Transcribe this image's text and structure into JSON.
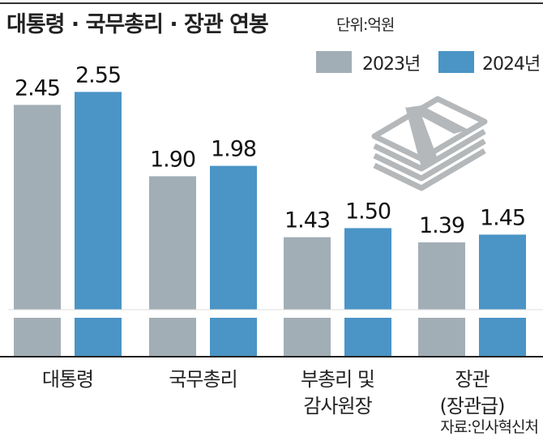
{
  "chart_data": {
    "type": "bar",
    "title": "대통령 · 국무총리 · 장관 연봉",
    "unit": "단위:억원",
    "categories": [
      [
        "대통령"
      ],
      [
        "국무총리"
      ],
      [
        "부총리 및",
        "감사원장"
      ],
      [
        "장관",
        "(장관급)"
      ]
    ],
    "series": [
      {
        "name": "2023년",
        "color": "#a2aeb5",
        "values": [
          2.45,
          1.9,
          1.43,
          1.39
        ]
      },
      {
        "name": "2024년",
        "color": "#4a94c6",
        "values": [
          2.55,
          1.98,
          1.5,
          1.45
        ]
      }
    ],
    "value_labels": [
      [
        "2.45",
        "1.90",
        "1.43",
        "1.39"
      ],
      [
        "2.55",
        "1.98",
        "1.50",
        "1.45"
      ]
    ],
    "axis_break": true,
    "legend": "top-right",
    "source": "자료:인사혁신처"
  }
}
